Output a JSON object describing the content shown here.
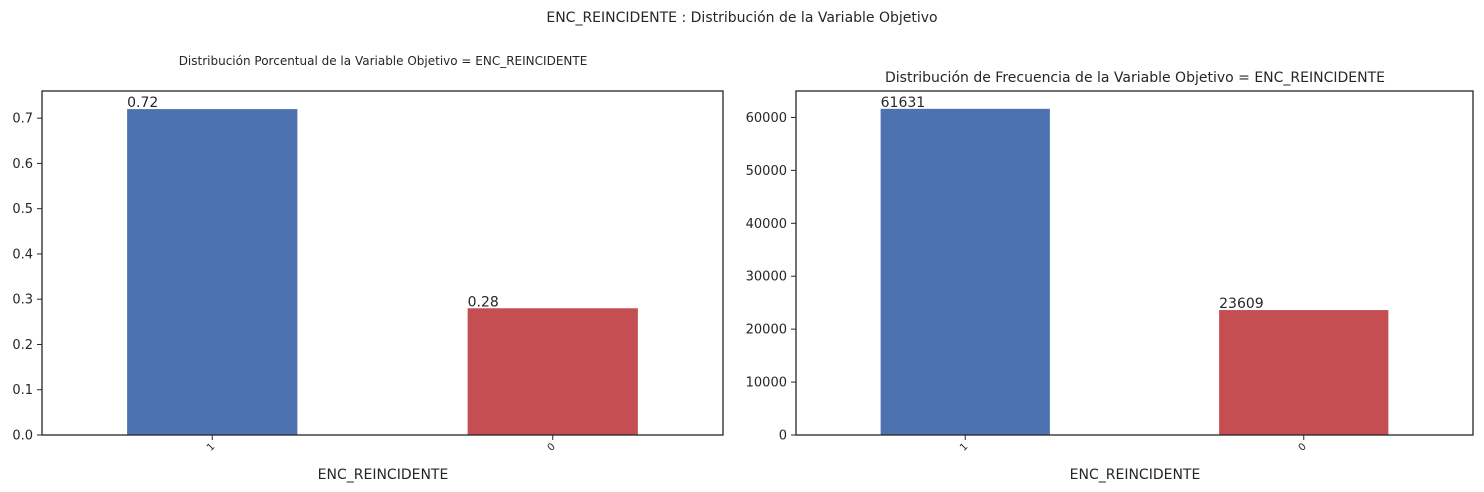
{
  "suptitle": "ENC_REINCIDENTE : Distribución de la Variable Objetivo",
  "colors": {
    "bar_1": "#4C72B0",
    "bar_0": "#C44E52",
    "axis": "#262626"
  },
  "chart_data": [
    {
      "type": "bar",
      "title": "Distribución Porcentual de la Variable Objetivo = ENC_REINCIDENTE",
      "xlabel": "ENC_REINCIDENTE",
      "ylabel": "",
      "categories": [
        "1",
        "0"
      ],
      "values": [
        0.72,
        0.28
      ],
      "data_labels": [
        "0.72",
        "0.28"
      ],
      "ylim": [
        0,
        0.76
      ],
      "yticks": [
        0.0,
        0.1,
        0.2,
        0.3,
        0.4,
        0.5,
        0.6,
        0.7
      ],
      "ytick_labels": [
        "0.0",
        "0.1",
        "0.2",
        "0.3",
        "0.4",
        "0.5",
        "0.6",
        "0.7"
      ],
      "grid": false
    },
    {
      "type": "bar",
      "title": "Distribución de Frecuencia de la Variable Objetivo = ENC_REINCIDENTE",
      "xlabel": "ENC_REINCIDENTE",
      "ylabel": "",
      "categories": [
        "1",
        "0"
      ],
      "values": [
        61631,
        23609
      ],
      "data_labels": [
        "61631",
        "23609"
      ],
      "ylim": [
        0,
        65000
      ],
      "yticks": [
        0,
        10000,
        20000,
        30000,
        40000,
        50000,
        60000
      ],
      "ytick_labels": [
        "0",
        "10000",
        "20000",
        "30000",
        "40000",
        "50000",
        "60000"
      ],
      "grid": false
    }
  ]
}
